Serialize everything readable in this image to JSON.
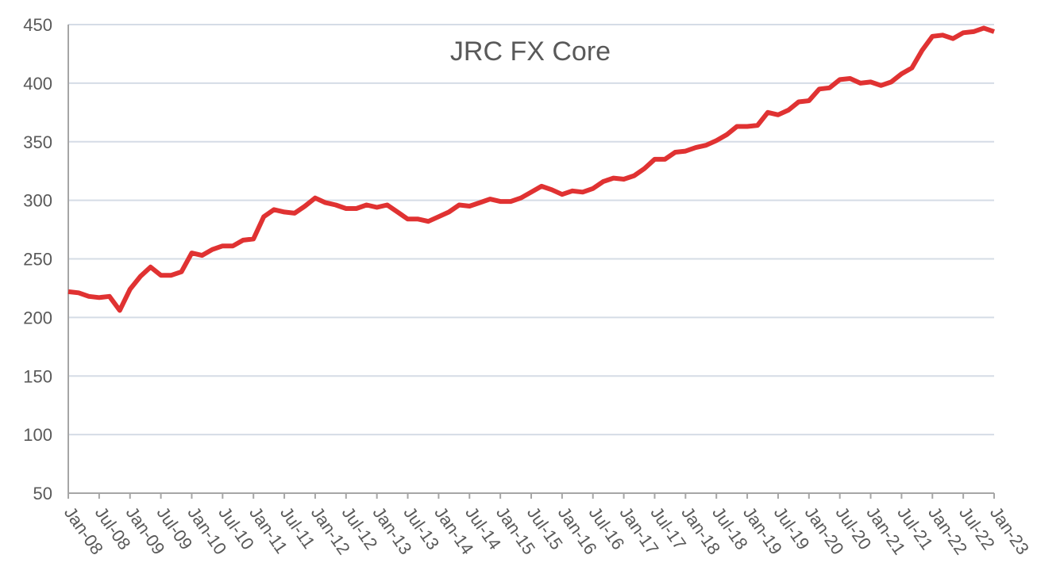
{
  "chart_data": {
    "type": "line",
    "title": "JRC FX Core",
    "categories": [
      "Jan-08",
      null,
      null,
      "Jul-08",
      null,
      null,
      "Jan-09",
      null,
      null,
      "Jul-09",
      null,
      null,
      "Jan-10",
      null,
      null,
      "Jul-10",
      null,
      null,
      "Jan-11",
      null,
      null,
      "Jul-11",
      null,
      null,
      "Jan-12",
      null,
      null,
      "Jul-12",
      null,
      null,
      "Jan-13",
      null,
      null,
      "Jul-13",
      null,
      null,
      "Jan-14",
      null,
      null,
      "Jul-14",
      null,
      null,
      "Jan-15",
      null,
      null,
      "Jul-15",
      null,
      null,
      "Jan-16",
      null,
      null,
      "Jul-16",
      null,
      null,
      "Jan-17",
      null,
      null,
      "Jul-17",
      null,
      null,
      "Jan-18",
      null,
      null,
      "Jul-18",
      null,
      null,
      "Jan-19",
      null,
      null,
      "Jul-19",
      null,
      null,
      "Jan-20",
      null,
      null,
      "Jul-20",
      null,
      null,
      "Jan-21",
      null,
      null,
      "Jul-21",
      null,
      null,
      "Jan-22",
      null,
      null,
      "Jul-22",
      null,
      null,
      "Jan-23"
    ],
    "series": [
      {
        "color": "#e03232",
        "values": [
          222,
          221,
          218,
          217,
          218,
          206,
          224,
          235,
          243,
          236,
          236,
          239,
          255,
          253,
          258,
          261,
          261,
          266,
          267,
          286,
          292,
          290,
          289,
          295,
          302,
          298,
          296,
          293,
          293,
          296,
          294,
          296,
          290,
          284,
          284,
          282,
          286,
          290,
          296,
          295,
          298,
          301,
          299,
          299,
          302,
          307,
          312,
          309,
          305,
          308,
          307,
          310,
          316,
          319,
          318,
          321,
          327,
          335,
          335,
          341,
          342,
          345,
          347,
          351,
          356,
          363,
          363,
          364,
          375,
          373,
          377,
          384,
          385,
          395,
          396,
          403,
          404,
          400,
          401,
          398,
          401,
          408,
          413,
          428,
          440,
          441,
          438,
          443,
          444,
          447,
          444
        ]
      }
    ],
    "ylim": [
      50,
      450
    ],
    "yticks": [
      50,
      100,
      150,
      200,
      250,
      300,
      350,
      400,
      450
    ],
    "grid": true
  }
}
